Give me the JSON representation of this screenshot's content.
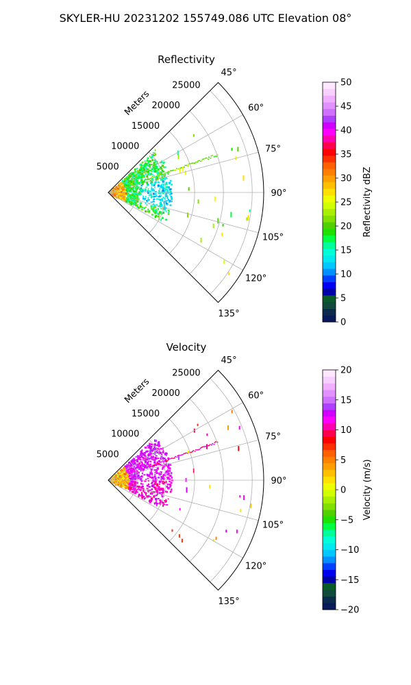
{
  "suptitle": "SKYLER-HU  20231202  155749.086 UTC Elevation 08°",
  "chart_data": [
    {
      "type": "heatmap",
      "projection": "polar-sector",
      "title": "Reflectivity",
      "theta_range_deg": [
        45,
        135
      ],
      "theta_ticks": [
        "45°",
        "60°",
        "75°",
        "90°",
        "105°",
        "120°",
        "135°"
      ],
      "r_label": "Meters",
      "r_ticks": [
        "5000",
        "10000",
        "15000",
        "20000",
        "25000"
      ],
      "r_max": 27000,
      "grid": true,
      "colorbar": {
        "label": "Reflectivity dBZ",
        "range": [
          0,
          50
        ],
        "ticks": [
          "0",
          "5",
          "10",
          "15",
          "20",
          "25",
          "30",
          "35",
          "40",
          "45",
          "50"
        ],
        "colors": [
          "#081a5a",
          "#0b2a4c",
          "#0f4a3a",
          "#0b5a2a",
          "#0000a8",
          "#0000f0",
          "#0040ff",
          "#0090ff",
          "#00c8ff",
          "#00e8f0",
          "#00ffd8",
          "#00ff9a",
          "#00ff40",
          "#20e000",
          "#50d000",
          "#80e000",
          "#a8f000",
          "#d0ff00",
          "#f0ff00",
          "#ffe000",
          "#ffc000",
          "#ffa000",
          "#ff8000",
          "#ff6000",
          "#ff3000",
          "#ff0000",
          "#ff0050",
          "#ff00b0",
          "#ff00ff",
          "#d000ff",
          "#b040ff",
          "#d070ff",
          "#e090ff",
          "#f0b0ff",
          "#f8d0ff",
          "#ffe8ff"
        ]
      },
      "echoes_description": "dense echoes 0–8 km, strongest 22–30 dBZ",
      "min_value": 10,
      "max_value": 32
    },
    {
      "type": "heatmap",
      "projection": "polar-sector",
      "title": "Velocity",
      "theta_range_deg": [
        45,
        135
      ],
      "theta_ticks": [
        "45°",
        "60°",
        "75°",
        "90°",
        "105°",
        "120°",
        "135°"
      ],
      "r_label": "Meters",
      "r_ticks": [
        "5000",
        "10000",
        "15000",
        "20000",
        "25000"
      ],
      "r_max": 27000,
      "grid": true,
      "colorbar": {
        "label": "Velocity (m/s)",
        "range": [
          -20,
          20
        ],
        "ticks": [
          "−20",
          "−15",
          "−10",
          "−5",
          "0",
          "5",
          "10",
          "15",
          "20"
        ],
        "colors": [
          "#081a5a",
          "#0b2a4c",
          "#0f4a3a",
          "#0b5a2a",
          "#0000a8",
          "#0000f0",
          "#0040ff",
          "#0090ff",
          "#00c8ff",
          "#00e8f0",
          "#00ffd8",
          "#00ff9a",
          "#00ff40",
          "#20e000",
          "#50d000",
          "#80e000",
          "#a8f000",
          "#d0ff00",
          "#f0ff00",
          "#ffe000",
          "#ffc000",
          "#ffa000",
          "#ff8000",
          "#ff6000",
          "#ff3000",
          "#ff0000",
          "#ff0050",
          "#ff00b0",
          "#ff00ff",
          "#d000ff",
          "#b040ff",
          "#d070ff",
          "#e090ff",
          "#f0b0ff",
          "#f8d0ff",
          "#ffe8ff"
        ]
      },
      "min_value": 0,
      "max_value": 14
    }
  ]
}
